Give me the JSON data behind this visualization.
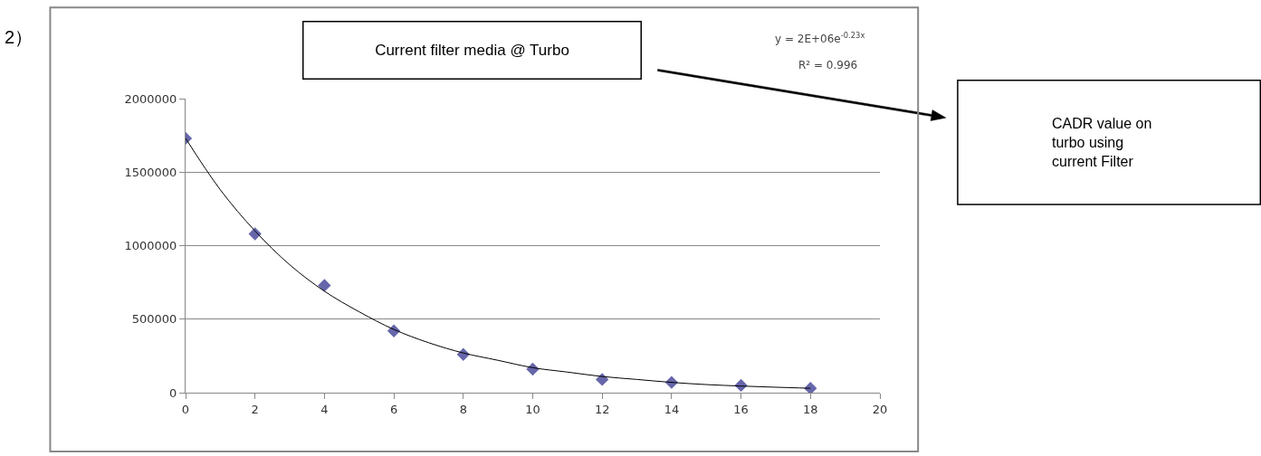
{
  "chart_data": {
    "type": "scatter",
    "x": [
      0,
      2,
      4,
      6,
      8,
      10,
      12,
      14,
      16,
      18
    ],
    "series": [
      {
        "color": "#6666aa",
        "marker": "diamond",
        "values": [
          1730000,
          1080000,
          730000,
          420000,
          260000,
          160000,
          90000,
          70000,
          50000,
          30000
        ]
      },
      {
        "type": "line",
        "color": "#000000",
        "x": [
          0,
          1,
          2,
          3,
          4,
          5,
          6,
          7,
          8,
          9,
          10,
          11,
          12,
          13,
          14,
          15,
          16,
          17,
          18
        ],
        "values": [
          1730000,
          1380000,
          1100000,
          870000,
          690000,
          550000,
          430000,
          340000,
          270000,
          220000,
          170000,
          140000,
          110000,
          90000,
          70000,
          55000,
          45000,
          37000,
          30000
        ]
      }
    ],
    "xlim": [
      0,
      20
    ],
    "xticks": [
      0,
      2,
      4,
      6,
      8,
      10,
      12,
      14,
      16,
      18,
      20
    ],
    "ylim": [
      0,
      2000000
    ],
    "yticks": [
      0,
      500000,
      1000000,
      1500000,
      2000000
    ],
    "grid": "y",
    "annotations": [
      "2）",
      "Current filter media @ Turbo",
      "y = 2E+06e$^{-0.23x}$",
      "R² = 0.996",
      "CADR value on turbo using current Filter"
    ]
  }
}
